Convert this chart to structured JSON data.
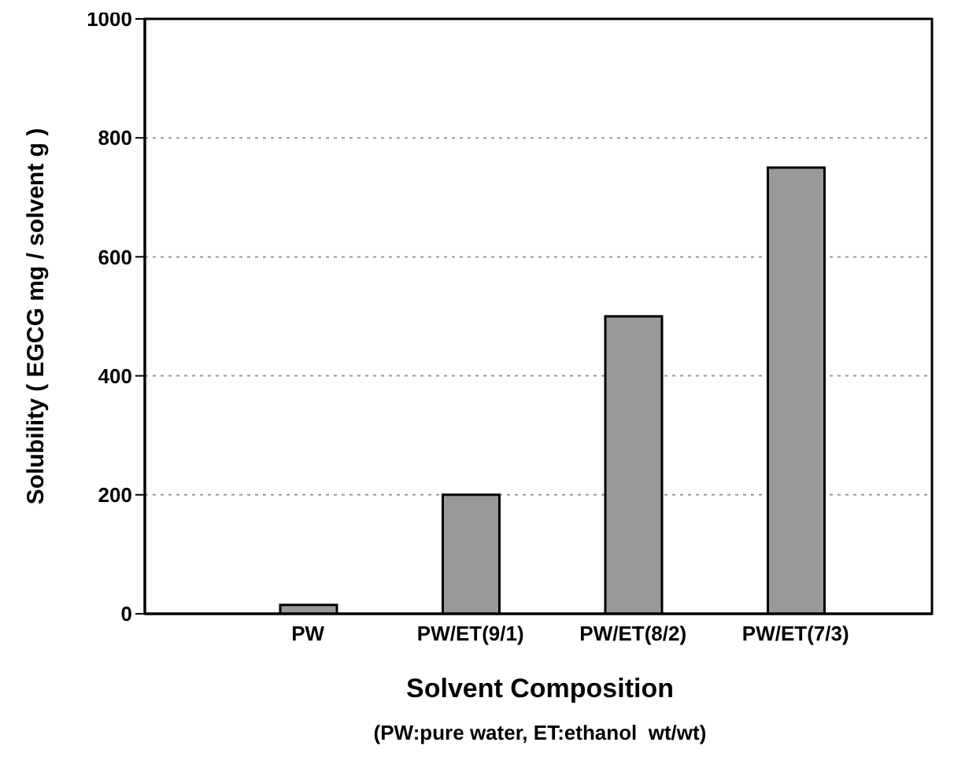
{
  "chart_data": {
    "type": "bar",
    "xlabel": "Solvent  Composition",
    "ylabel": "Solubility ( EGCG mg / solvent g )",
    "annotations": [
      "(PW:pure water, ET:ethanol  wt/wt)"
    ],
    "categories": [
      "PW",
      "PW/ET(9/1)",
      "PW/ET(8/2)",
      "PW/ET(7/3)"
    ],
    "values": [
      15,
      200,
      500,
      750
    ],
    "color": "#999999",
    "ylim": [
      0,
      1000
    ],
    "yticks": [
      0,
      200,
      400,
      600,
      800,
      1000
    ],
    "grid": "y"
  }
}
